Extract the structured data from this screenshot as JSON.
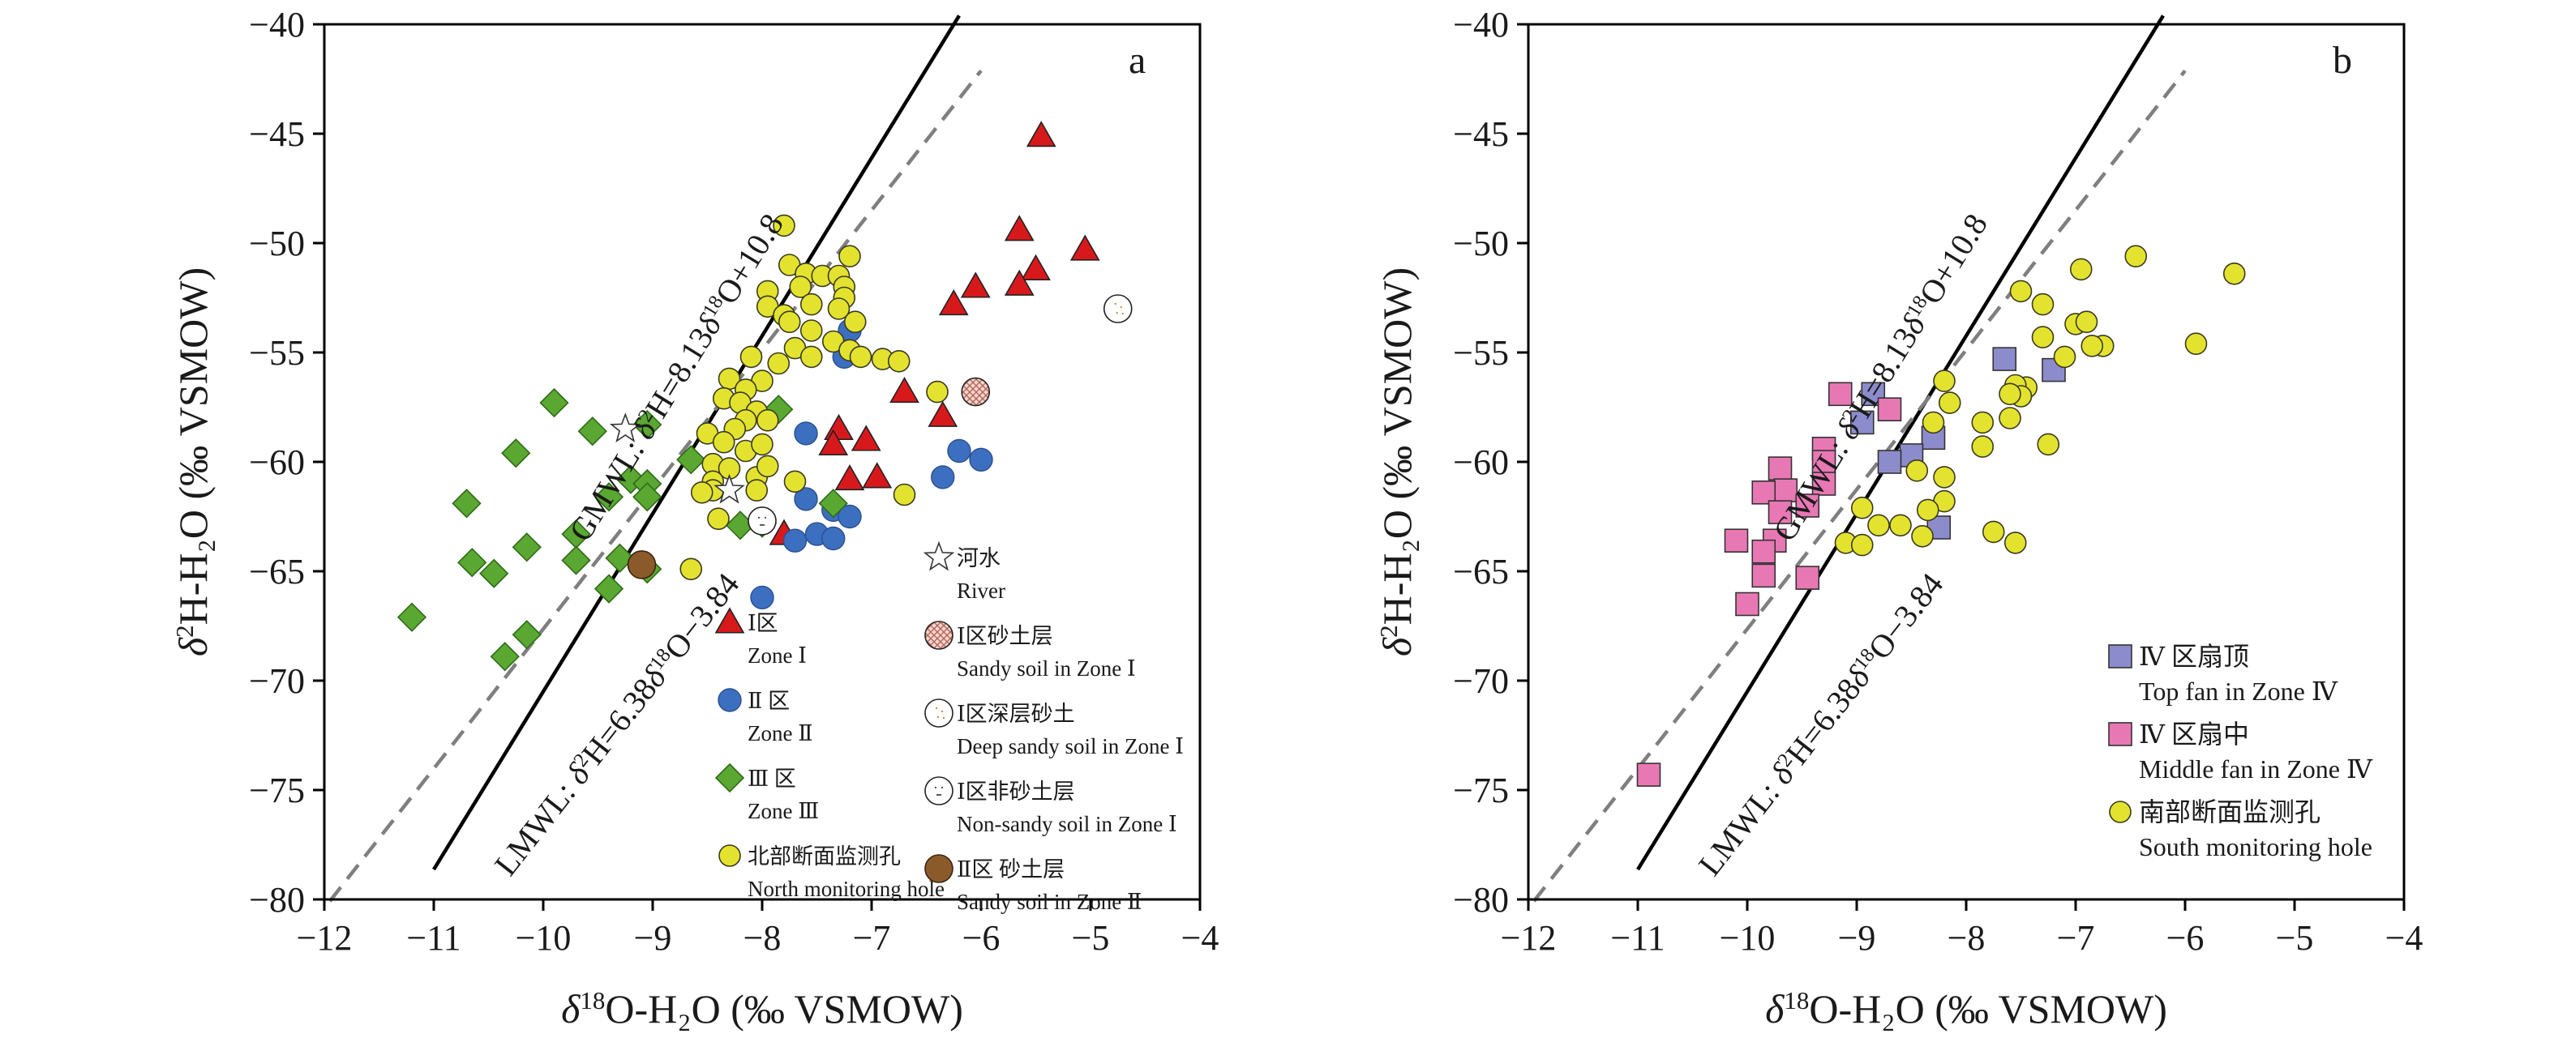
{
  "chart_data": [
    {
      "panel": "a",
      "type": "scatter",
      "xlabel": {
        "pre": "δ",
        "sup": "18",
        "post": "O-H₂O (‰ VSMOW)"
      },
      "ylabel": {
        "pre": "δ",
        "sup": "2",
        "post": "H-H₂O (‰ VSMOW)"
      },
      "xlim": [
        -12,
        -4
      ],
      "ylim": [
        -80,
        -40
      ],
      "xticks": [
        -12,
        -11,
        -10,
        -9,
        -8,
        -7,
        -6,
        -5,
        -4
      ],
      "yticks": [
        -40,
        -45,
        -50,
        -55,
        -60,
        -65,
        -70,
        -75,
        -80
      ],
      "xtick_labels": [
        "−12",
        "−11",
        "−10",
        "−9",
        "−8",
        "−7",
        "−6",
        "−5",
        "−4"
      ],
      "ytick_labels": [
        "−40",
        "−45",
        "−50",
        "−55",
        "−60",
        "−65",
        "−70",
        "−75",
        "−80"
      ],
      "lines": [
        {
          "name": "GMWL",
          "slope": 8.13,
          "intercept": 10.8,
          "x_range": [
            -11,
            -6.2
          ],
          "style": "solid",
          "color": "#000000",
          "label": {
            "pre": "GMWL: δ",
            "sup1": "2",
            "mid": "H=8.13δ",
            "sup2": "18",
            "post": "O+10.8"
          }
        },
        {
          "name": "LMWL",
          "slope": 6.38,
          "intercept": -3.84,
          "x_range": [
            -11.95,
            -6
          ],
          "style": "dashed",
          "color": "#7f7f7f",
          "label": {
            "pre": "LMWL: δ",
            "sup1": "2",
            "mid": "H=6.38δ",
            "sup2": "18",
            "post": "O−3.84"
          }
        }
      ],
      "legend": {
        "placement": "bottom-right",
        "items": [
          {
            "marker": "triangle",
            "cn": "Ⅰ区",
            "en": "Zone Ⅰ"
          },
          {
            "marker": "circle-blue",
            "cn": "Ⅱ 区",
            "en": "Zone Ⅱ"
          },
          {
            "marker": "diamond",
            "cn": "Ⅲ 区",
            "en": "Zone Ⅲ"
          },
          {
            "marker": "circle-yellow",
            "cn": "北部断面监测孔",
            "en": "North monitoring hole"
          },
          {
            "marker": "star",
            "cn": "河水",
            "en": "River"
          },
          {
            "marker": "hatched",
            "cn": "Ⅰ区砂土层",
            "en": "Sandy soil in Zone Ⅰ"
          },
          {
            "marker": "deep",
            "cn": "Ⅰ区深层砂土",
            "en": "Deep sandy soil in Zone Ⅰ"
          },
          {
            "marker": "nonsandy",
            "cn": "Ⅰ区非砂土层",
            "en": "Non-sandy soil in Zone Ⅰ"
          },
          {
            "marker": "circle-brown",
            "cn": "Ⅱ区 砂土层",
            "en": "Sandy soil in Zone Ⅱ"
          }
        ]
      },
      "series": [
        {
          "name": "Zone Ⅰ",
          "marker": "triangle",
          "color": "#d7191c",
          "points": [
            [
              -5.45,
              -45.1
            ],
            [
              -5.65,
              -49.4
            ],
            [
              -5.05,
              -50.3
            ],
            [
              -5.5,
              -51.2
            ],
            [
              -5.65,
              -51.9
            ],
            [
              -6.05,
              -52
            ],
            [
              -6.25,
              -52.8
            ],
            [
              -6.7,
              -56.8
            ],
            [
              -6.35,
              -57.9
            ],
            [
              -7.3,
              -58.5
            ],
            [
              -7.35,
              -59.2
            ],
            [
              -7.05,
              -59
            ],
            [
              -7.2,
              -60.8
            ],
            [
              -6.95,
              -60.7
            ],
            [
              -7.8,
              -63.3
            ]
          ]
        },
        {
          "name": "Zone Ⅱ",
          "marker": "circle-blue",
          "color": "#3d6fc0",
          "points": [
            [
              -7.2,
              -54
            ],
            [
              -7.25,
              -55.2
            ],
            [
              -7.6,
              -58.7
            ],
            [
              -6.2,
              -59.5
            ],
            [
              -6.0,
              -59.9
            ],
            [
              -6.35,
              -60.7
            ],
            [
              -7.6,
              -61.7
            ],
            [
              -7.35,
              -62.2
            ],
            [
              -7.2,
              -62.5
            ],
            [
              -7.7,
              -63.6
            ],
            [
              -7.5,
              -63.3
            ],
            [
              -7.35,
              -63.5
            ],
            [
              -8.0,
              -66.2
            ]
          ]
        },
        {
          "name": "Zone Ⅲ",
          "marker": "diamond",
          "color": "#5aa832",
          "points": [
            [
              -9.9,
              -57.3
            ],
            [
              -9.55,
              -58.6
            ],
            [
              -9.05,
              -58.3
            ],
            [
              -10.25,
              -59.6
            ],
            [
              -8.65,
              -59.9
            ],
            [
              -9.2,
              -60.8
            ],
            [
              -9.05,
              -61
            ],
            [
              -9.05,
              -61.6
            ],
            [
              -9.4,
              -61.6
            ],
            [
              -10.7,
              -61.9
            ],
            [
              -7.35,
              -61.9
            ],
            [
              -8.2,
              -62.9
            ],
            [
              -8.0,
              -62.8
            ],
            [
              -9.7,
              -63.3
            ],
            [
              -10.15,
              -63.9
            ],
            [
              -10.65,
              -64.6
            ],
            [
              -10.45,
              -65.1
            ],
            [
              -9.7,
              -64.5
            ],
            [
              -9.3,
              -64.4
            ],
            [
              -9.05,
              -64.9
            ],
            [
              -9.4,
              -65.8
            ],
            [
              -11.2,
              -67.1
            ],
            [
              -10.15,
              -67.9
            ],
            [
              -10.35,
              -68.9
            ],
            [
              -7.85,
              -57.6
            ]
          ]
        },
        {
          "name": "North monitoring hole",
          "marker": "circle-yellow",
          "color": "#e3e32f",
          "points": [
            [
              -7.8,
              -49.2
            ],
            [
              -7.2,
              -50.6
            ],
            [
              -7.75,
              -51
            ],
            [
              -7.6,
              -51.4
            ],
            [
              -7.45,
              -51.5
            ],
            [
              -7.3,
              -51.5
            ],
            [
              -7.25,
              -52
            ],
            [
              -7.25,
              -52.5
            ],
            [
              -7.65,
              -52
            ],
            [
              -7.95,
              -52.2
            ],
            [
              -7.95,
              -52.9
            ],
            [
              -7.55,
              -52.8
            ],
            [
              -7.3,
              -53
            ],
            [
              -7.8,
              -53.3
            ],
            [
              -7.75,
              -53.6
            ],
            [
              -7.15,
              -53.6
            ],
            [
              -7.55,
              -54
            ],
            [
              -7.35,
              -54.5
            ],
            [
              -7.7,
              -54.8
            ],
            [
              -7.2,
              -54.9
            ],
            [
              -7.1,
              -55.2
            ],
            [
              -6.9,
              -55.3
            ],
            [
              -6.75,
              -55.4
            ],
            [
              -8.1,
              -55.2
            ],
            [
              -7.85,
              -55.5
            ],
            [
              -7.55,
              -55.2
            ],
            [
              -8.0,
              -56.3
            ],
            [
              -8.3,
              -56.2
            ],
            [
              -8.15,
              -56.7
            ],
            [
              -8.35,
              -57.1
            ],
            [
              -8.2,
              -57.3
            ],
            [
              -8.05,
              -57.7
            ],
            [
              -7.95,
              -58.1
            ],
            [
              -8.15,
              -58.1
            ],
            [
              -8.25,
              -58.5
            ],
            [
              -8.5,
              -58.7
            ],
            [
              -8.35,
              -59.1
            ],
            [
              -8.45,
              -60.1
            ],
            [
              -8.15,
              -59.5
            ],
            [
              -8.3,
              -60.3
            ],
            [
              -8.05,
              -60.7
            ],
            [
              -8.0,
              -59.2
            ],
            [
              -7.95,
              -60.2
            ],
            [
              -8.45,
              -60.9
            ],
            [
              -8.05,
              -61.3
            ],
            [
              -8.45,
              -61.3
            ],
            [
              -8.55,
              -61.4
            ],
            [
              -8.4,
              -62.6
            ],
            [
              -7.7,
              -60.9
            ],
            [
              -6.7,
              -61.5
            ],
            [
              -6.4,
              -56.8
            ],
            [
              -8.65,
              -64.9
            ]
          ]
        },
        {
          "name": "River",
          "marker": "star",
          "color": "#ffffff",
          "points": [
            [
              -9.25,
              -58.5
            ],
            [
              -8.3,
              -61.3
            ]
          ]
        },
        {
          "name": "Sandy soil in Zone Ⅰ",
          "marker": "hatched",
          "color": "#f4d7cf",
          "points": [
            [
              -6.05,
              -56.8
            ]
          ]
        },
        {
          "name": "Deep sandy soil in Zone Ⅰ",
          "marker": "deep",
          "color": "#ffffff",
          "points": [
            [
              -4.75,
              -53
            ]
          ]
        },
        {
          "name": "Non-sandy soil in Zone Ⅰ",
          "marker": "nonsandy",
          "color": "#ffffff",
          "points": [
            [
              -8.0,
              -62.7
            ]
          ]
        },
        {
          "name": "Sandy soil in Zone Ⅱ",
          "marker": "circle-brown",
          "color": "#8b5a2b",
          "points": [
            [
              -9.1,
              -64.7
            ]
          ]
        }
      ]
    },
    {
      "panel": "b",
      "type": "scatter",
      "xlabel": {
        "pre": "δ",
        "sup": "18",
        "post": "O-H₂O (‰ VSMOW)"
      },
      "ylabel": {
        "pre": "δ",
        "sup": "2",
        "post": "H-H₂O (‰ VSMOW)"
      },
      "xlim": [
        -12,
        -4
      ],
      "ylim": [
        -80,
        -40
      ],
      "xticks": [
        -12,
        -11,
        -10,
        -9,
        -8,
        -7,
        -6,
        -5,
        -4
      ],
      "yticks": [
        -40,
        -45,
        -50,
        -55,
        -60,
        -65,
        -70,
        -75,
        -80
      ],
      "xtick_labels": [
        "−12",
        "−11",
        "−10",
        "−9",
        "−8",
        "−7",
        "−6",
        "−5",
        "−4"
      ],
      "ytick_labels": [
        "−40",
        "−45",
        "−50",
        "−55",
        "−60",
        "−65",
        "−70",
        "−75",
        "−80"
      ],
      "lines": [
        {
          "name": "GMWL",
          "slope": 8.13,
          "intercept": 10.8,
          "x_range": [
            -11,
            -6.2
          ],
          "style": "solid",
          "color": "#000000",
          "label": {
            "pre": "GMWL: δ",
            "sup1": "2",
            "mid": "H=8.13δ",
            "sup2": "18",
            "post": "O+10.8"
          }
        },
        {
          "name": "LMWL",
          "slope": 6.38,
          "intercept": -3.84,
          "x_range": [
            -11.95,
            -6
          ],
          "style": "dashed",
          "color": "#7f7f7f",
          "label": {
            "pre": "LMWL: δ",
            "sup1": "2",
            "mid": "H=6.38δ",
            "sup2": "18",
            "post": "O−3.84"
          }
        }
      ],
      "legend": {
        "placement": "bottom-right",
        "items": [
          {
            "marker": "square-purple",
            "cn": "Ⅳ 区扇顶",
            "en": "Top fan in Zone Ⅳ"
          },
          {
            "marker": "square-pink",
            "cn": "Ⅳ 区扇中",
            "en": "Middle fan in Zone Ⅳ"
          },
          {
            "marker": "circle-yellow",
            "cn": "南部断面监测孔",
            "en": "South monitoring hole"
          }
        ]
      },
      "series": [
        {
          "name": "Top fan in Zone Ⅳ",
          "marker": "square-purple",
          "color": "#8c8ccc",
          "points": [
            [
              -7.65,
              -55.3
            ],
            [
              -7.2,
              -55.8
            ],
            [
              -8.85,
              -56.9
            ],
            [
              -8.95,
              -58.2
            ],
            [
              -8.3,
              -58.9
            ],
            [
              -8.5,
              -59.7
            ],
            [
              -8.7,
              -60
            ],
            [
              -8.25,
              -63
            ]
          ]
        },
        {
          "name": "Middle fan in Zone Ⅳ",
          "marker": "square-pink",
          "color": "#e878b4",
          "points": [
            [
              -9.15,
              -56.9
            ],
            [
              -8.7,
              -57.6
            ],
            [
              -9.3,
              -59.4
            ],
            [
              -9.3,
              -60
            ],
            [
              -9.7,
              -60.3
            ],
            [
              -9.3,
              -61
            ],
            [
              -9.65,
              -61.3
            ],
            [
              -9.85,
              -61.4
            ],
            [
              -9.45,
              -62
            ],
            [
              -9.7,
              -62.3
            ],
            [
              -10.1,
              -63.6
            ],
            [
              -9.75,
              -63.6
            ],
            [
              -9.85,
              -64.1
            ],
            [
              -9.85,
              -65.2
            ],
            [
              -9.45,
              -65.3
            ],
            [
              -10.0,
              -66.5
            ],
            [
              -10.9,
              -74.3
            ]
          ]
        },
        {
          "name": "South monitoring hole",
          "marker": "circle-yellow",
          "color": "#e3e32f",
          "points": [
            [
              -6.45,
              -50.6
            ],
            [
              -5.55,
              -51.4
            ],
            [
              -6.95,
              -51.2
            ],
            [
              -7.5,
              -52.2
            ],
            [
              -7.3,
              -52.8
            ],
            [
              -7.0,
              -53.7
            ],
            [
              -6.9,
              -53.6
            ],
            [
              -7.3,
              -54.3
            ],
            [
              -6.75,
              -54.7
            ],
            [
              -6.85,
              -54.7
            ],
            [
              -5.9,
              -54.6
            ],
            [
              -7.1,
              -55.2
            ],
            [
              -7.45,
              -56.6
            ],
            [
              -7.55,
              -56.5
            ],
            [
              -7.5,
              -57
            ],
            [
              -7.6,
              -56.9
            ],
            [
              -7.6,
              -58
            ],
            [
              -8.2,
              -56.3
            ],
            [
              -8.15,
              -57.3
            ],
            [
              -7.85,
              -58.2
            ],
            [
              -8.3,
              -58.2
            ],
            [
              -7.85,
              -59.3
            ],
            [
              -7.25,
              -59.2
            ],
            [
              -8.45,
              -60.4
            ],
            [
              -8.2,
              -60.7
            ],
            [
              -8.2,
              -61.8
            ],
            [
              -8.35,
              -62.2
            ],
            [
              -8.95,
              -62.1
            ],
            [
              -8.8,
              -62.9
            ],
            [
              -8.6,
              -62.9
            ],
            [
              -8.4,
              -63.4
            ],
            [
              -7.75,
              -63.2
            ],
            [
              -7.55,
              -63.7
            ],
            [
              -9.1,
              -63.7
            ],
            [
              -8.95,
              -63.8
            ]
          ]
        }
      ]
    }
  ]
}
